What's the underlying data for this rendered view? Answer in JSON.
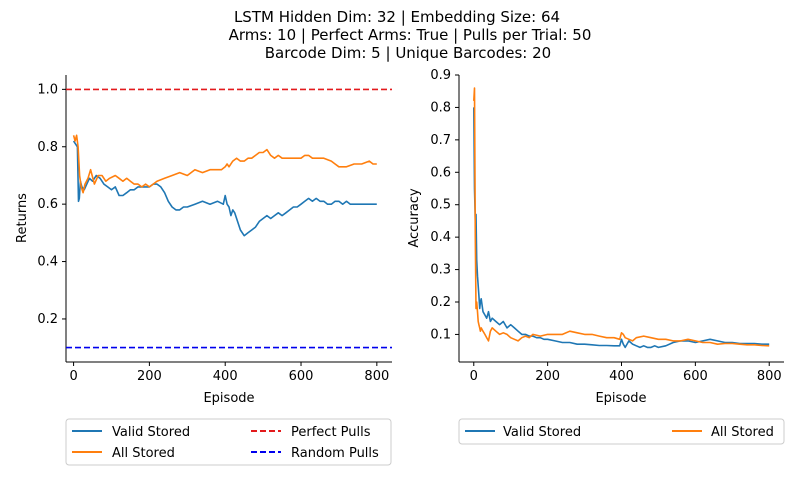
{
  "figure": {
    "title_lines": [
      "LSTM Hidden Dim: 32 | Embedding Size: 64",
      "Arms: 10 | Perfect Arms: True | Pulls per Trial: 50",
      "Barcode Dim: 5 | Unique Barcodes: 20"
    ]
  },
  "colors": {
    "valid_stored": "#1f77b4",
    "all_stored": "#ff7f0e",
    "perfect_pulls": "#e31a1c",
    "random_pulls": "#0000ee"
  },
  "chart_data": [
    {
      "type": "line",
      "xlabel": "Episode",
      "ylabel": "Returns",
      "xlim": [
        -20,
        840
      ],
      "ylim": [
        0.05,
        1.05
      ],
      "xticks": [
        0,
        200,
        400,
        600,
        800
      ],
      "yticks": [
        0.2,
        0.4,
        0.6,
        0.8,
        1.0
      ],
      "grid": false,
      "legend_position": "below",
      "legend_columns": 2,
      "series": [
        {
          "name": "Valid Stored",
          "color": "#1f77b4",
          "style": "solid",
          "x": [
            0,
            5,
            10,
            13,
            15,
            18,
            22,
            28,
            35,
            42,
            50,
            60,
            70,
            80,
            90,
            100,
            110,
            120,
            130,
            140,
            150,
            160,
            170,
            180,
            190,
            200,
            210,
            220,
            230,
            240,
            250,
            260,
            270,
            280,
            290,
            300,
            320,
            340,
            360,
            380,
            395,
            400,
            405,
            410,
            415,
            420,
            425,
            430,
            435,
            440,
            450,
            460,
            470,
            480,
            490,
            500,
            510,
            520,
            530,
            540,
            550,
            560,
            570,
            580,
            590,
            600,
            610,
            620,
            630,
            640,
            650,
            660,
            670,
            680,
            690,
            700,
            710,
            720,
            730,
            740,
            750,
            760,
            770,
            780,
            790,
            800
          ],
          "y": [
            0.82,
            0.81,
            0.8,
            0.61,
            0.62,
            0.68,
            0.66,
            0.65,
            0.67,
            0.69,
            0.68,
            0.7,
            0.69,
            0.67,
            0.66,
            0.65,
            0.66,
            0.63,
            0.63,
            0.64,
            0.65,
            0.65,
            0.66,
            0.66,
            0.66,
            0.66,
            0.67,
            0.67,
            0.66,
            0.64,
            0.61,
            0.59,
            0.58,
            0.58,
            0.59,
            0.59,
            0.6,
            0.61,
            0.6,
            0.61,
            0.6,
            0.63,
            0.6,
            0.59,
            0.56,
            0.58,
            0.57,
            0.55,
            0.53,
            0.51,
            0.49,
            0.5,
            0.51,
            0.52,
            0.54,
            0.55,
            0.56,
            0.55,
            0.56,
            0.57,
            0.56,
            0.57,
            0.58,
            0.59,
            0.59,
            0.6,
            0.61,
            0.62,
            0.61,
            0.62,
            0.61,
            0.61,
            0.6,
            0.6,
            0.61,
            0.61,
            0.6,
            0.61,
            0.6,
            0.6,
            0.6,
            0.6,
            0.6,
            0.6,
            0.6,
            0.6
          ]
        },
        {
          "name": "All Stored",
          "color": "#ff7f0e",
          "style": "solid",
          "x": [
            0,
            4,
            8,
            12,
            16,
            20,
            25,
            30,
            38,
            45,
            55,
            65,
            75,
            85,
            95,
            110,
            120,
            130,
            140,
            150,
            160,
            170,
            180,
            190,
            200,
            210,
            220,
            240,
            260,
            280,
            300,
            310,
            320,
            340,
            360,
            380,
            390,
            400,
            405,
            410,
            420,
            430,
            440,
            450,
            460,
            470,
            480,
            490,
            500,
            510,
            520,
            530,
            540,
            550,
            560,
            580,
            600,
            610,
            620,
            630,
            640,
            660,
            680,
            690,
            700,
            720,
            740,
            760,
            780,
            790,
            800
          ],
          "y": [
            0.84,
            0.82,
            0.84,
            0.8,
            0.7,
            0.66,
            0.64,
            0.67,
            0.69,
            0.72,
            0.67,
            0.7,
            0.7,
            0.68,
            0.69,
            0.7,
            0.69,
            0.68,
            0.69,
            0.68,
            0.67,
            0.67,
            0.66,
            0.67,
            0.66,
            0.67,
            0.68,
            0.69,
            0.7,
            0.71,
            0.7,
            0.71,
            0.72,
            0.71,
            0.72,
            0.72,
            0.72,
            0.73,
            0.74,
            0.73,
            0.75,
            0.76,
            0.75,
            0.75,
            0.76,
            0.76,
            0.77,
            0.78,
            0.78,
            0.79,
            0.77,
            0.76,
            0.77,
            0.76,
            0.76,
            0.76,
            0.76,
            0.77,
            0.77,
            0.76,
            0.76,
            0.76,
            0.75,
            0.74,
            0.73,
            0.73,
            0.74,
            0.74,
            0.75,
            0.74,
            0.74
          ]
        },
        {
          "name": "Perfect Pulls",
          "color": "#e31a1c",
          "style": "dashed",
          "x": [
            -20,
            840
          ],
          "y": [
            1.0,
            1.0
          ]
        },
        {
          "name": "Random Pulls",
          "color": "#0000ee",
          "style": "dashed",
          "x": [
            -20,
            840
          ],
          "y": [
            0.1,
            0.1
          ]
        }
      ]
    },
    {
      "type": "line",
      "xlabel": "Episode",
      "ylabel": "Accuracy",
      "xlim": [
        -40,
        840
      ],
      "ylim": [
        0.015,
        0.9
      ],
      "xticks": [
        0,
        200,
        400,
        600,
        800
      ],
      "yticks": [
        0.1,
        0.2,
        0.3,
        0.4,
        0.5,
        0.6,
        0.7,
        0.8,
        0.9
      ],
      "grid": false,
      "legend_position": "below",
      "legend_columns": 2,
      "series": [
        {
          "name": "Valid Stored",
          "color": "#1f77b4",
          "style": "solid",
          "x": [
            0,
            2,
            4,
            5,
            6,
            8,
            10,
            12,
            14,
            16,
            18,
            20,
            25,
            30,
            35,
            40,
            45,
            50,
            60,
            70,
            80,
            90,
            100,
            110,
            120,
            130,
            140,
            150,
            160,
            170,
            180,
            190,
            200,
            220,
            240,
            260,
            280,
            300,
            320,
            340,
            360,
            380,
            395,
            400,
            405,
            410,
            420,
            430,
            440,
            450,
            460,
            470,
            480,
            490,
            500,
            520,
            540,
            560,
            580,
            600,
            620,
            640,
            660,
            680,
            700,
            720,
            740,
            760,
            780,
            800
          ],
          "y": [
            0.8,
            0.55,
            0.45,
            0.42,
            0.47,
            0.33,
            0.28,
            0.25,
            0.22,
            0.18,
            0.2,
            0.21,
            0.17,
            0.16,
            0.15,
            0.17,
            0.14,
            0.15,
            0.14,
            0.13,
            0.14,
            0.12,
            0.13,
            0.12,
            0.11,
            0.1,
            0.1,
            0.095,
            0.095,
            0.09,
            0.09,
            0.085,
            0.085,
            0.08,
            0.075,
            0.075,
            0.07,
            0.07,
            0.068,
            0.066,
            0.066,
            0.065,
            0.065,
            0.085,
            0.07,
            0.06,
            0.08,
            0.07,
            0.065,
            0.06,
            0.065,
            0.06,
            0.06,
            0.065,
            0.06,
            0.065,
            0.075,
            0.08,
            0.08,
            0.075,
            0.08,
            0.085,
            0.08,
            0.075,
            0.075,
            0.072,
            0.072,
            0.072,
            0.07,
            0.07
          ]
        },
        {
          "name": "All Stored",
          "color": "#ff7f0e",
          "style": "solid",
          "x": [
            0,
            2,
            4,
            6,
            8,
            10,
            12,
            14,
            16,
            18,
            20,
            25,
            30,
            35,
            40,
            45,
            50,
            60,
            70,
            80,
            90,
            100,
            110,
            120,
            130,
            140,
            150,
            160,
            180,
            200,
            220,
            240,
            260,
            280,
            300,
            320,
            340,
            360,
            380,
            395,
            400,
            405,
            410,
            420,
            430,
            440,
            460,
            480,
            500,
            520,
            540,
            560,
            580,
            600,
            620,
            640,
            660,
            680,
            700,
            720,
            740,
            760,
            780,
            800
          ],
          "y": [
            0.82,
            0.86,
            0.4,
            0.18,
            0.2,
            0.17,
            0.14,
            0.13,
            0.12,
            0.11,
            0.12,
            0.11,
            0.1,
            0.09,
            0.08,
            0.11,
            0.12,
            0.11,
            0.1,
            0.105,
            0.1,
            0.09,
            0.085,
            0.08,
            0.09,
            0.095,
            0.09,
            0.1,
            0.095,
            0.1,
            0.1,
            0.1,
            0.11,
            0.105,
            0.1,
            0.1,
            0.095,
            0.09,
            0.09,
            0.085,
            0.105,
            0.1,
            0.09,
            0.085,
            0.08,
            0.09,
            0.095,
            0.09,
            0.085,
            0.085,
            0.08,
            0.08,
            0.085,
            0.08,
            0.075,
            0.075,
            0.07,
            0.072,
            0.072,
            0.07,
            0.068,
            0.068,
            0.066,
            0.065
          ]
        }
      ]
    }
  ],
  "legends": [
    {
      "items": [
        "Valid Stored",
        "All Stored",
        "Perfect Pulls",
        "Random Pulls"
      ]
    },
    {
      "items": [
        "Valid Stored",
        "All Stored"
      ]
    }
  ]
}
